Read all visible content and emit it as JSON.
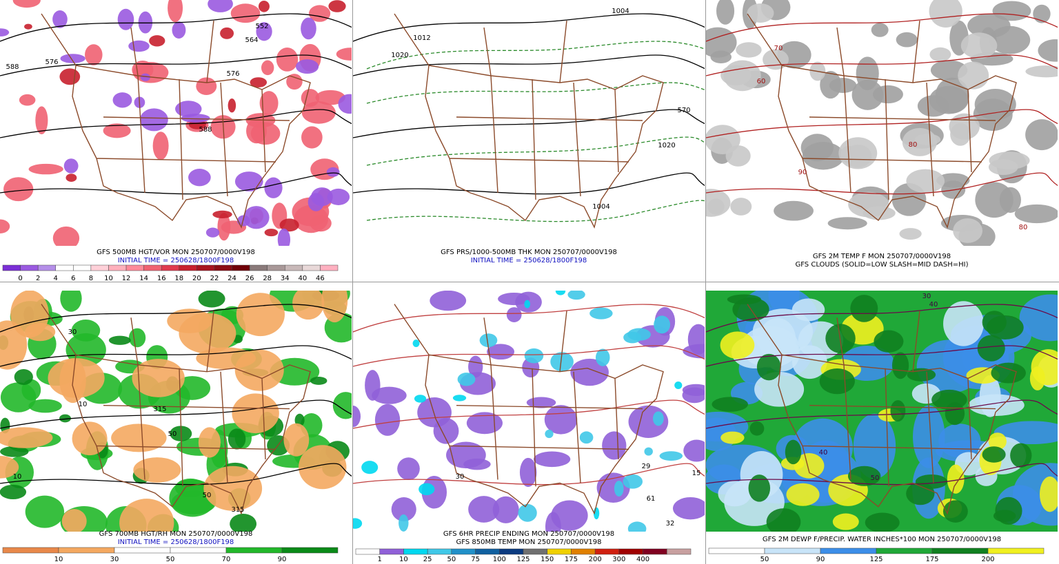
{
  "panels": [
    {
      "title_lines": [
        "GFS 500MB HGT/VOR MON 250707/0000V198",
        "INITIAL TIME = 250628/1800F198"
      ],
      "colorbar": {
        "labels": [
          "0",
          "2",
          "4",
          "6",
          "8",
          "10",
          "12",
          "14",
          "16",
          "18",
          "20",
          "22",
          "24",
          "26",
          "28",
          "34",
          "40",
          "46"
        ],
        "colors": [
          "#7b2fd6",
          "#9a5ae0",
          "#b48ee8",
          "#ffffff",
          "#ffffff",
          "#ffd0d8",
          "#ffb0bc",
          "#ff8a9a",
          "#f06272",
          "#e03a4e",
          "#c8202e",
          "#a81420",
          "#8c0c14",
          "#700008",
          "#8a7a7a",
          "#a89898",
          "#c8b8b8",
          "#e8d8d8",
          "#ffb0c0"
        ]
      },
      "map_labels": [
        "588",
        "576",
        "564",
        "552",
        "576",
        "588"
      ]
    },
    {
      "title_lines": [
        "GFS PRS/1000-500MB THK MON 250707/0000V198",
        "INITIAL TIME = 250628/1800F198"
      ],
      "map_labels": [
        "1020",
        "1012",
        "1004",
        "1020",
        "570",
        "1004"
      ]
    },
    {
      "title_lines": [
        "GFS 2M TEMP F MON 250707/0000V198",
        "GFS CLOUDS (SOLID=LOW SLASH=MID DASH=HI)"
      ],
      "map_labels": [
        "60",
        "70",
        "80",
        "90",
        "80"
      ]
    },
    {
      "title_lines": [
        "GFS 700MB HGT/RH MON 250707/0000V198",
        "INITIAL TIME = 250628/1800F198"
      ],
      "colorbar": {
        "labels": [
          "10",
          "30",
          "50",
          "70",
          "90"
        ],
        "colors": [
          "#e8884a",
          "#f4a860",
          "#ffffff",
          "#ffffff",
          "#22b82a",
          "#0a8a18"
        ]
      },
      "map_labels": [
        "30",
        "10",
        "315",
        "50",
        "10",
        "50",
        "315"
      ]
    },
    {
      "title_lines": [
        "GFS 6HR PRECIP ENDING MON 250707/0000V198",
        "GFS 850MB TEMP MON 250707/0000V198"
      ],
      "colorbar": {
        "labels": [
          "1",
          "10",
          "25",
          "50",
          "75",
          "100",
          "125",
          "150",
          "175",
          "200",
          "300",
          "400"
        ],
        "colors": [
          "#ffffff",
          "#9060d8",
          "#00d8f0",
          "#40c8e8",
          "#2090c8",
          "#1060a0",
          "#0a3a80",
          "#707070",
          "#f0d000",
          "#e08000",
          "#d02010",
          "#a00000",
          "#800020",
          "#c8a0a0"
        ]
      },
      "map_labels": [
        "30",
        "29",
        "61",
        "32",
        "15"
      ]
    },
    {
      "title_lines": [
        "GFS 2M DEWP F/PRECIP. WATER INCHES*100 MON 250707/0000V198"
      ],
      "colorbar": {
        "labels": [
          "50",
          "90",
          "125",
          "175",
          "200"
        ],
        "colors": [
          "#ffffff",
          "#c8e4f8",
          "#3c8ee8",
          "#20a838",
          "#108020",
          "#f0f020"
        ]
      },
      "map_labels": [
        "30",
        "40",
        "50",
        "40"
      ]
    }
  ]
}
